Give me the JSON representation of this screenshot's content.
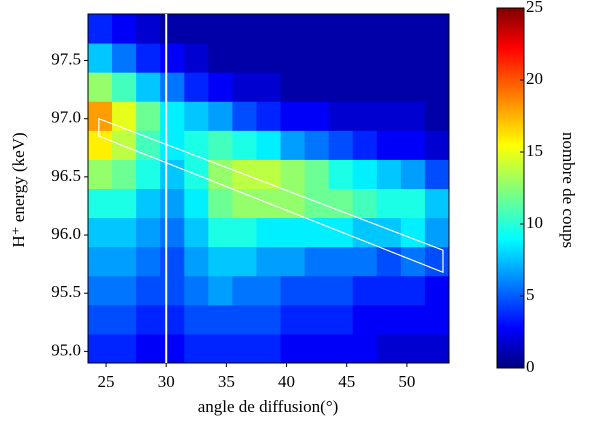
{
  "chart_data": {
    "type": "heatmap",
    "x_label": "angle de diffusion(°)",
    "y_label": "H⁺ energy (keV)",
    "colorbar_label": "nombre de coups",
    "xlim": [
      23.5,
      53.5
    ],
    "ylim": [
      94.9,
      97.9
    ],
    "xticks": [
      25,
      30,
      35,
      40,
      45,
      50
    ],
    "yticks": [
      {
        "value": 95,
        "label": "95.0"
      },
      95.5,
      {
        "value": 96,
        "label": "96.0"
      },
      96.5,
      {
        "value": 97,
        "label": "97.0"
      },
      97.5
    ],
    "x_bins": [
      23.5,
      25.5,
      27.5,
      29.5,
      31.5,
      33.5,
      35.5,
      37.5,
      39.5,
      41.5,
      43.5,
      45.5,
      47.5,
      49.5,
      51.5,
      53.5
    ],
    "y_bins": [
      94.9,
      95.15,
      95.4,
      95.65,
      95.9,
      96.15,
      96.4,
      96.65,
      96.9,
      97.15,
      97.4,
      97.65,
      97.9
    ],
    "z": [
      [
        4,
        4,
        3,
        3,
        4,
        4,
        4,
        4,
        3,
        3,
        3,
        3,
        2,
        2,
        2
      ],
      [
        5,
        5,
        4,
        4,
        5,
        5,
        5,
        5,
        4,
        4,
        4,
        3,
        3,
        3,
        3
      ],
      [
        6,
        6,
        5,
        5,
        6,
        7,
        6,
        6,
        5,
        5,
        5,
        4,
        4,
        4,
        3
      ],
      [
        7,
        7,
        6,
        5,
        7,
        8,
        8,
        7,
        7,
        6,
        6,
        6,
        5,
        6,
        5
      ],
      [
        8,
        8,
        7,
        6,
        8,
        10,
        10,
        9,
        9,
        9,
        9,
        8,
        8,
        9,
        7
      ],
      [
        10,
        10,
        8,
        7,
        9,
        12,
        13,
        13,
        13,
        12,
        12,
        11,
        10,
        10,
        8
      ],
      [
        13,
        12,
        10,
        8,
        10,
        13,
        14,
        14,
        13,
        12,
        10,
        9,
        8,
        7,
        5
      ],
      [
        16,
        14,
        11,
        9,
        10,
        11,
        10,
        9,
        7,
        6,
        5,
        4,
        3,
        3,
        2
      ],
      [
        18,
        15,
        12,
        9,
        8,
        7,
        5,
        4,
        3,
        3,
        2,
        2,
        2,
        2,
        1
      ],
      [
        13,
        11,
        8,
        6,
        4,
        3,
        2,
        2,
        1,
        1,
        1,
        1,
        1,
        1,
        1
      ],
      [
        8,
        6,
        4,
        3,
        2,
        1,
        1,
        1,
        1,
        1,
        1,
        1,
        1,
        1,
        1
      ],
      [
        4,
        3,
        2,
        1,
        1,
        1,
        1,
        1,
        1,
        1,
        1,
        1,
        1,
        1,
        1
      ]
    ],
    "colormap": "jet",
    "zlim": [
      0,
      25
    ],
    "zticks": [
      0,
      5,
      10,
      15,
      20,
      25
    ],
    "vline_x": 30,
    "region": [
      [
        24.4,
        97.0
      ],
      [
        53.0,
        95.87
      ],
      [
        53.0,
        95.68
      ],
      [
        24.4,
        96.85
      ]
    ],
    "overlay_color": "#ffffff"
  }
}
